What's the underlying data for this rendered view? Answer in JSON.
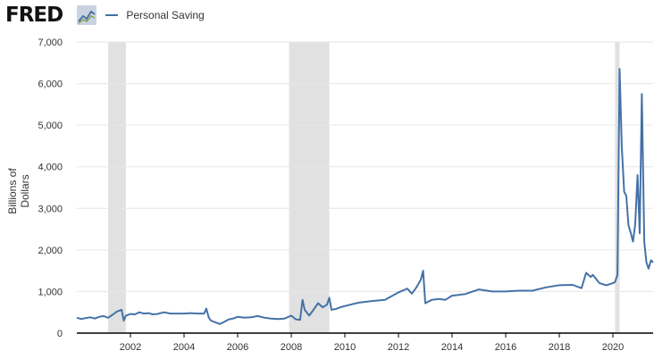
{
  "header": {
    "brand": "FRED"
  },
  "colors": {
    "series": "#4572a7",
    "recession": "#e1e1e1",
    "grid": "#e6e6e6",
    "axis": "#000000"
  },
  "chart_data": {
    "type": "line",
    "title": "",
    "xlabel": "",
    "ylabel": "Billions of Dollars",
    "legend": "top-left",
    "grid": true,
    "xlim": [
      2000.0,
      2021.5
    ],
    "ylim": [
      0,
      7000
    ],
    "yticks": [
      0,
      1000,
      2000,
      3000,
      4000,
      5000,
      6000,
      7000
    ],
    "ytick_labels": [
      "0",
      "1,000",
      "2,000",
      "3,000",
      "4,000",
      "5,000",
      "6,000",
      "7,000"
    ],
    "xticks": [
      2002,
      2004,
      2006,
      2008,
      2010,
      2012,
      2014,
      2016,
      2018,
      2020
    ],
    "xtick_labels": [
      "2002",
      "2004",
      "2006",
      "2008",
      "2010",
      "2012",
      "2014",
      "2016",
      "2018",
      "2020"
    ],
    "recessions": [
      [
        2001.17,
        2001.83
      ],
      [
        2007.92,
        2009.42
      ],
      [
        2020.08,
        2020.25
      ]
    ],
    "series": [
      {
        "name": "Personal Saving",
        "x": [
          2000.0,
          2000.17,
          2000.33,
          2000.5,
          2000.67,
          2000.83,
          2001.0,
          2001.17,
          2001.33,
          2001.5,
          2001.67,
          2001.75,
          2001.83,
          2002.0,
          2002.17,
          2002.33,
          2002.5,
          2002.67,
          2002.83,
          2003.0,
          2003.25,
          2003.5,
          2003.75,
          2004.0,
          2004.25,
          2004.5,
          2004.75,
          2004.83,
          2004.92,
          2005.0,
          2005.17,
          2005.33,
          2005.5,
          2005.67,
          2005.83,
          2006.0,
          2006.25,
          2006.5,
          2006.75,
          2007.0,
          2007.25,
          2007.5,
          2007.75,
          2008.0,
          2008.17,
          2008.33,
          2008.42,
          2008.5,
          2008.67,
          2008.83,
          2009.0,
          2009.17,
          2009.33,
          2009.42,
          2009.5,
          2009.67,
          2009.83,
          2010.0,
          2010.5,
          2011.0,
          2011.5,
          2012.0,
          2012.33,
          2012.5,
          2012.67,
          2012.83,
          2012.92,
          2013.0,
          2013.25,
          2013.5,
          2013.75,
          2014.0,
          2014.5,
          2015.0,
          2015.5,
          2016.0,
          2016.5,
          2017.0,
          2017.5,
          2018.0,
          2018.5,
          2018.83,
          2019.0,
          2019.17,
          2019.25,
          2019.5,
          2019.75,
          2020.0,
          2020.08,
          2020.17,
          2020.25,
          2020.33,
          2020.42,
          2020.5,
          2020.58,
          2020.67,
          2020.75,
          2020.83,
          2020.92,
          2021.0,
          2021.08,
          2021.17,
          2021.25,
          2021.33,
          2021.42,
          2021.5
        ],
        "values": [
          370,
          340,
          360,
          380,
          350,
          390,
          410,
          370,
          440,
          520,
          560,
          300,
          420,
          460,
          450,
          500,
          470,
          480,
          450,
          460,
          500,
          470,
          470,
          470,
          480,
          470,
          470,
          590,
          380,
          300,
          260,
          220,
          270,
          330,
          350,
          390,
          370,
          380,
          410,
          370,
          350,
          340,
          350,
          420,
          330,
          320,
          800,
          560,
          420,
          560,
          720,
          620,
          680,
          850,
          560,
          580,
          620,
          650,
          730,
          770,
          800,
          980,
          1070,
          950,
          1100,
          1280,
          1500,
          720,
          800,
          820,
          800,
          900,
          940,
          1050,
          1000,
          1000,
          1020,
          1020,
          1100,
          1150,
          1160,
          1080,
          1450,
          1350,
          1400,
          1200,
          1150,
          1200,
          1230,
          1400,
          6350,
          4500,
          3400,
          3300,
          2600,
          2400,
          2200,
          2600,
          3800,
          2400,
          5750,
          2200,
          1700,
          1550,
          1750,
          1700
        ]
      }
    ]
  }
}
